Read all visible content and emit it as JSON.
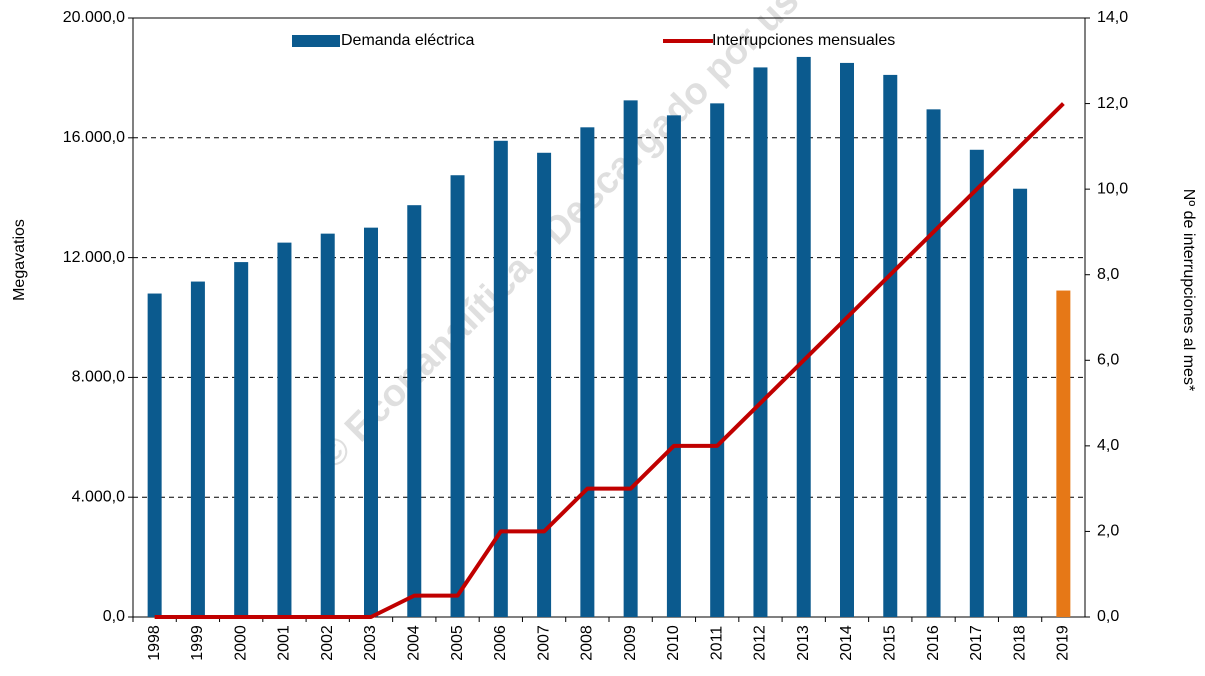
{
  "chart_data": {
    "type": "bar",
    "categories": [
      "1998",
      "1999",
      "2000",
      "2001",
      "2002",
      "2003",
      "2004",
      "2005",
      "2006",
      "2007",
      "2008",
      "2009",
      "2010",
      "2011",
      "2012",
      "2013",
      "2014",
      "2015",
      "2016",
      "2017",
      "2018",
      "2019"
    ],
    "series": [
      {
        "name": "Demanda eléctrica",
        "type": "bar",
        "color": "#0b5a8e",
        "colors": [
          "#0b5a8e",
          "#0b5a8e",
          "#0b5a8e",
          "#0b5a8e",
          "#0b5a8e",
          "#0b5a8e",
          "#0b5a8e",
          "#0b5a8e",
          "#0b5a8e",
          "#0b5a8e",
          "#0b5a8e",
          "#0b5a8e",
          "#0b5a8e",
          "#0b5a8e",
          "#0b5a8e",
          "#0b5a8e",
          "#0b5a8e",
          "#0b5a8e",
          "#0b5a8e",
          "#0b5a8e",
          "#0b5a8e",
          "#e67817"
        ],
        "values": [
          10800,
          11200,
          11850,
          12500,
          12800,
          13000,
          13750,
          14750,
          15900,
          15500,
          16350,
          17250,
          16750,
          17150,
          18350,
          18700,
          18500,
          18100,
          16950,
          15600,
          14300,
          10900
        ]
      },
      {
        "name": "Interrupciones mensuales",
        "type": "line",
        "axis": "y2",
        "color": "#c00000",
        "values": [
          0,
          0,
          0,
          0,
          0,
          0,
          0.5,
          0.5,
          2,
          2,
          3,
          3,
          4,
          4,
          5,
          6,
          7,
          8,
          9,
          10,
          11,
          12
        ]
      }
    ],
    "ylabel": "Megavatios",
    "y2label": "Nº de interrupciones al mes*",
    "watermark": "© Econanalítica - Descargado por us",
    "ylim": [
      0,
      20000
    ],
    "yticks": [
      {
        "value": 0,
        "label": "0,0"
      },
      {
        "value": 4000,
        "label": "4.000,0"
      },
      {
        "value": 8000,
        "label": "8.000,0"
      },
      {
        "value": 12000,
        "label": "12.000,0"
      },
      {
        "value": 16000,
        "label": "16.000,0"
      },
      {
        "value": 20000,
        "label": "20.000,0"
      }
    ],
    "y2lim": [
      0,
      14
    ],
    "y2ticks": [
      {
        "value": 0,
        "label": "0,0"
      },
      {
        "value": 2,
        "label": "2,0"
      },
      {
        "value": 4,
        "label": "4,0"
      },
      {
        "value": 6,
        "label": "6,0"
      },
      {
        "value": 8,
        "label": "8,0"
      },
      {
        "value": 10,
        "label": "10,0"
      },
      {
        "value": 12,
        "label": "12,0"
      },
      {
        "value": 14,
        "label": "14,0"
      }
    ],
    "grid": true
  }
}
